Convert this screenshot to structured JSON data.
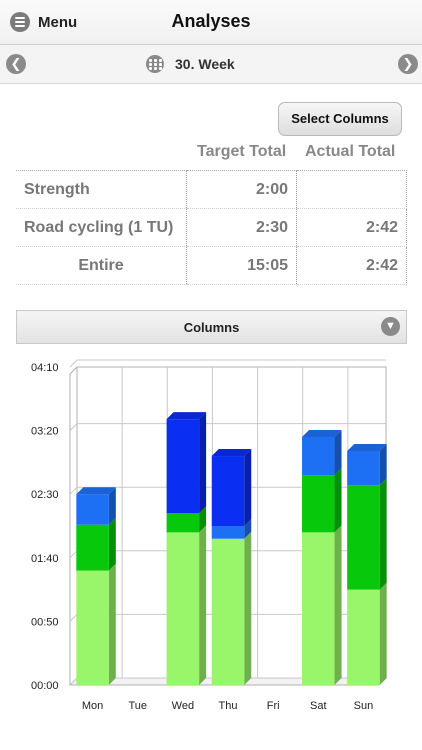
{
  "header": {
    "menu_label": "Menu",
    "title": "Analyses"
  },
  "week_nav": {
    "label": "30. Week"
  },
  "select_columns_label": "Select Columns",
  "totals_table": {
    "headers": [
      "Target Total",
      "Actual Total"
    ],
    "rows": [
      {
        "name": "Strength",
        "target": "2:00",
        "actual": ""
      },
      {
        "name": "Road cycling (1 TU)",
        "target": "2:30",
        "actual": "2:42"
      }
    ],
    "total": {
      "name": "Entire",
      "target": "15:05",
      "actual": "2:42"
    }
  },
  "columns_dropdown": {
    "label": "Columns"
  },
  "colors": {
    "light_green": "#99f56a",
    "green": "#08c80b",
    "light_blue": "#1d6ff3",
    "blue": "#0a2ef2"
  },
  "chart_data": {
    "type": "bar",
    "stacked": true,
    "categories": [
      "Mon",
      "Tue",
      "Wed",
      "Thu",
      "Fri",
      "Sat",
      "Sun"
    ],
    "y_tick_labels": [
      "00:00",
      "00:50",
      "01:40",
      "02:30",
      "03:20",
      "04:10"
    ],
    "ylim": [
      0,
      250
    ],
    "y_unit": "minutes",
    "series": [
      {
        "color": "#99f56a",
        "values": [
          90,
          0,
          120,
          115,
          0,
          120,
          75
        ]
      },
      {
        "color": "#08c80b",
        "values": [
          36,
          0,
          15,
          0,
          0,
          45,
          82
        ]
      },
      {
        "color": "#1d6ff3",
        "values": [
          24,
          0,
          0,
          10,
          0,
          30,
          27
        ]
      },
      {
        "color": "#0a2ef2",
        "values": [
          0,
          0,
          74,
          55,
          0,
          0,
          0
        ]
      }
    ],
    "grid": true
  }
}
